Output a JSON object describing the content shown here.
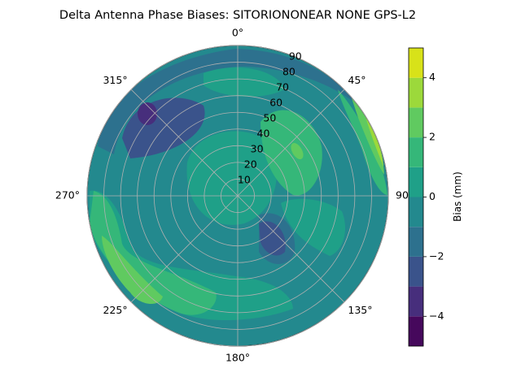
{
  "chart_data": {
    "type": "polar_contourf",
    "title": "Delta Antenna Phase Biases: SITORIONONEAR   NONE GPS-L2",
    "polar": {
      "theta_zero": "top",
      "theta_direction": "clockwise",
      "angle_tick_labels": [
        "0°",
        "45°",
        "90",
        "135°",
        "180°",
        "225°",
        "270°",
        "315°"
      ],
      "angle_ticks_deg": [
        0,
        45,
        90,
        135,
        180,
        225,
        270,
        315
      ],
      "radial_tick_labels": [
        "10",
        "20",
        "30",
        "40",
        "50",
        "60",
        "70",
        "80",
        "90"
      ],
      "radial_ticks": [
        10,
        20,
        30,
        40,
        50,
        60,
        70,
        80,
        90
      ],
      "rlim": [
        0,
        90
      ],
      "grid": true
    },
    "colorbar": {
      "label": "Bias (mm)",
      "ticks": [
        -4,
        -2,
        0,
        2,
        4
      ],
      "tick_labels": [
        "−4",
        "−2",
        "0",
        "2",
        "4"
      ],
      "range": [
        -5,
        5
      ],
      "levels": [
        -5,
        -4,
        -3,
        -2,
        -1,
        0,
        1,
        2,
        3,
        4,
        5
      ],
      "colormap": "viridis",
      "colors": [
        "#46085c",
        "#472e7c",
        "#3a538b",
        "#2d718e",
        "#23898e",
        "#1fa088",
        "#35b779",
        "#60ca60",
        "#9cd93b",
        "#d8e219"
      ]
    },
    "regions": [
      {
        "name": "background",
        "value_range": [
          0,
          1
        ]
      },
      {
        "name": "east-edge-high",
        "value_range": [
          3,
          5
        ],
        "location": "azimuth 45-90, elevation near horizon"
      },
      {
        "name": "southwest-high",
        "value_range": [
          2,
          3
        ],
        "location": "azimuth 200-260"
      },
      {
        "name": "northwest-low",
        "value_range": [
          -3,
          -2
        ],
        "location": "azimuth 300-330"
      },
      {
        "name": "southeast-low",
        "value_range": [
          -2,
          -1
        ],
        "location": "azimuth 125-150"
      },
      {
        "name": "center-positive",
        "value_range": [
          1,
          2
        ],
        "location": "zenith region"
      }
    ]
  }
}
